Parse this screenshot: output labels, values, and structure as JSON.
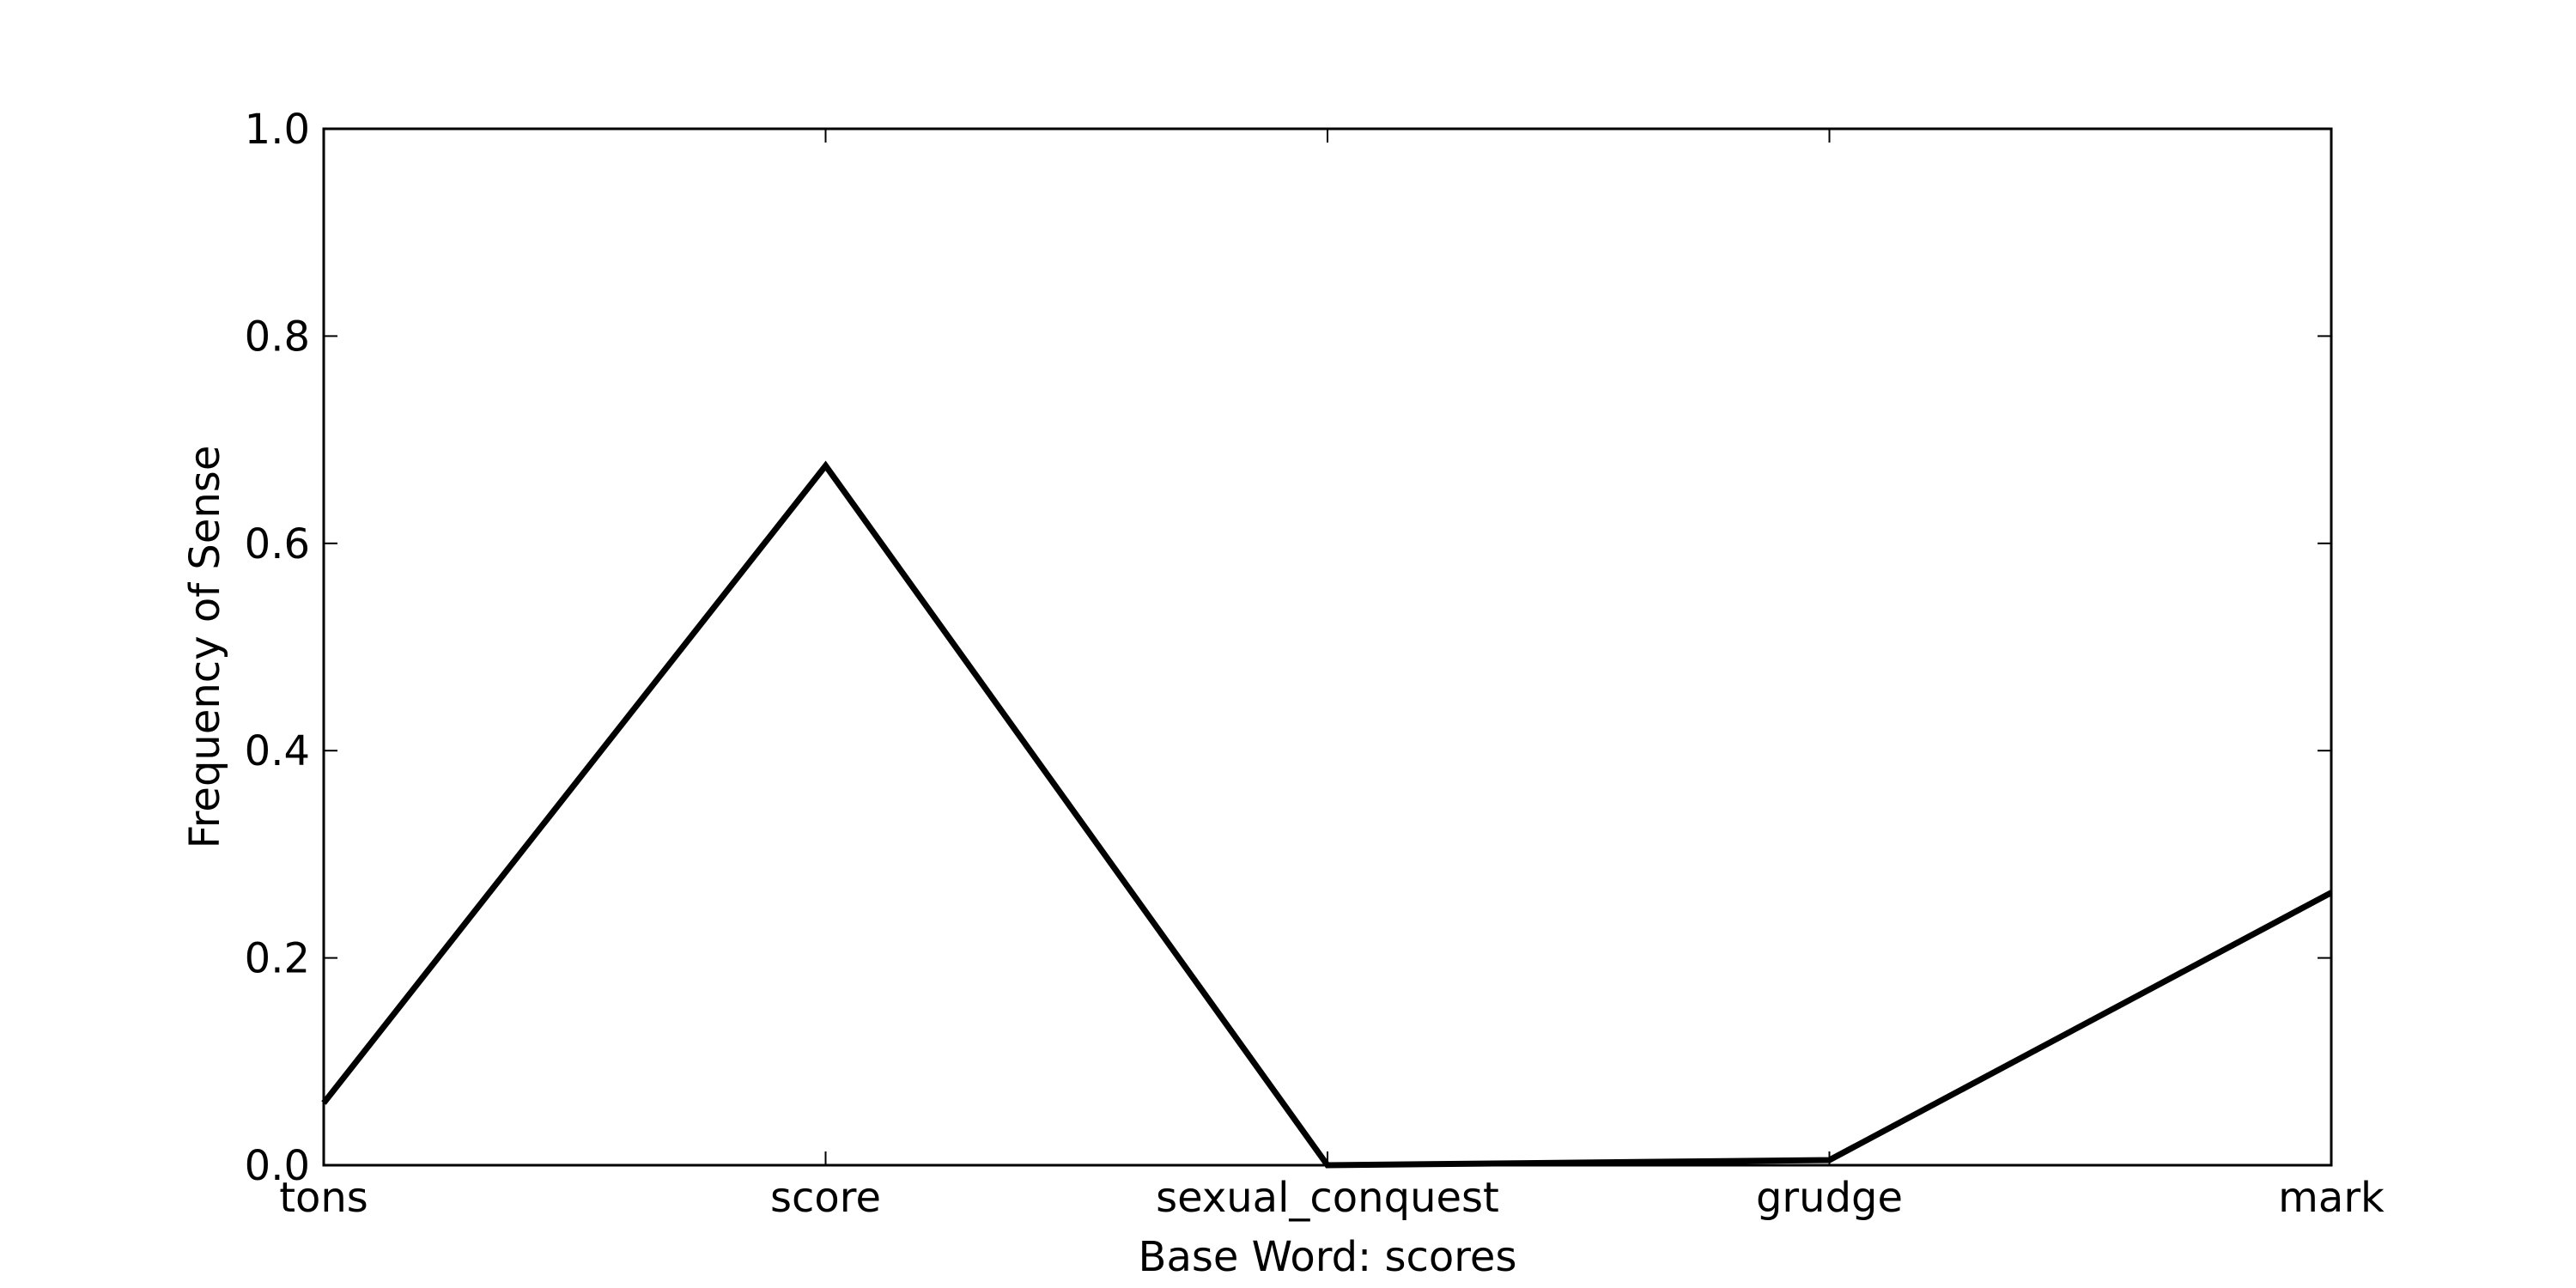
{
  "chart_data": {
    "type": "line",
    "categories": [
      "tons",
      "score",
      "sexual_conquest",
      "grudge",
      "mark"
    ],
    "series": [
      {
        "values": [
          0.06,
          0.675,
          0.0,
          0.005,
          0.263
        ]
      }
    ],
    "title": "",
    "xlabel": "Base Word: scores",
    "ylabel": "Frequency of Sense",
    "ylim": [
      0.0,
      1.0
    ],
    "yticks": [
      "0.0",
      "0.2",
      "0.4",
      "0.6",
      "0.8",
      "1.0"
    ],
    "grid": false,
    "line_color": "#000000"
  }
}
